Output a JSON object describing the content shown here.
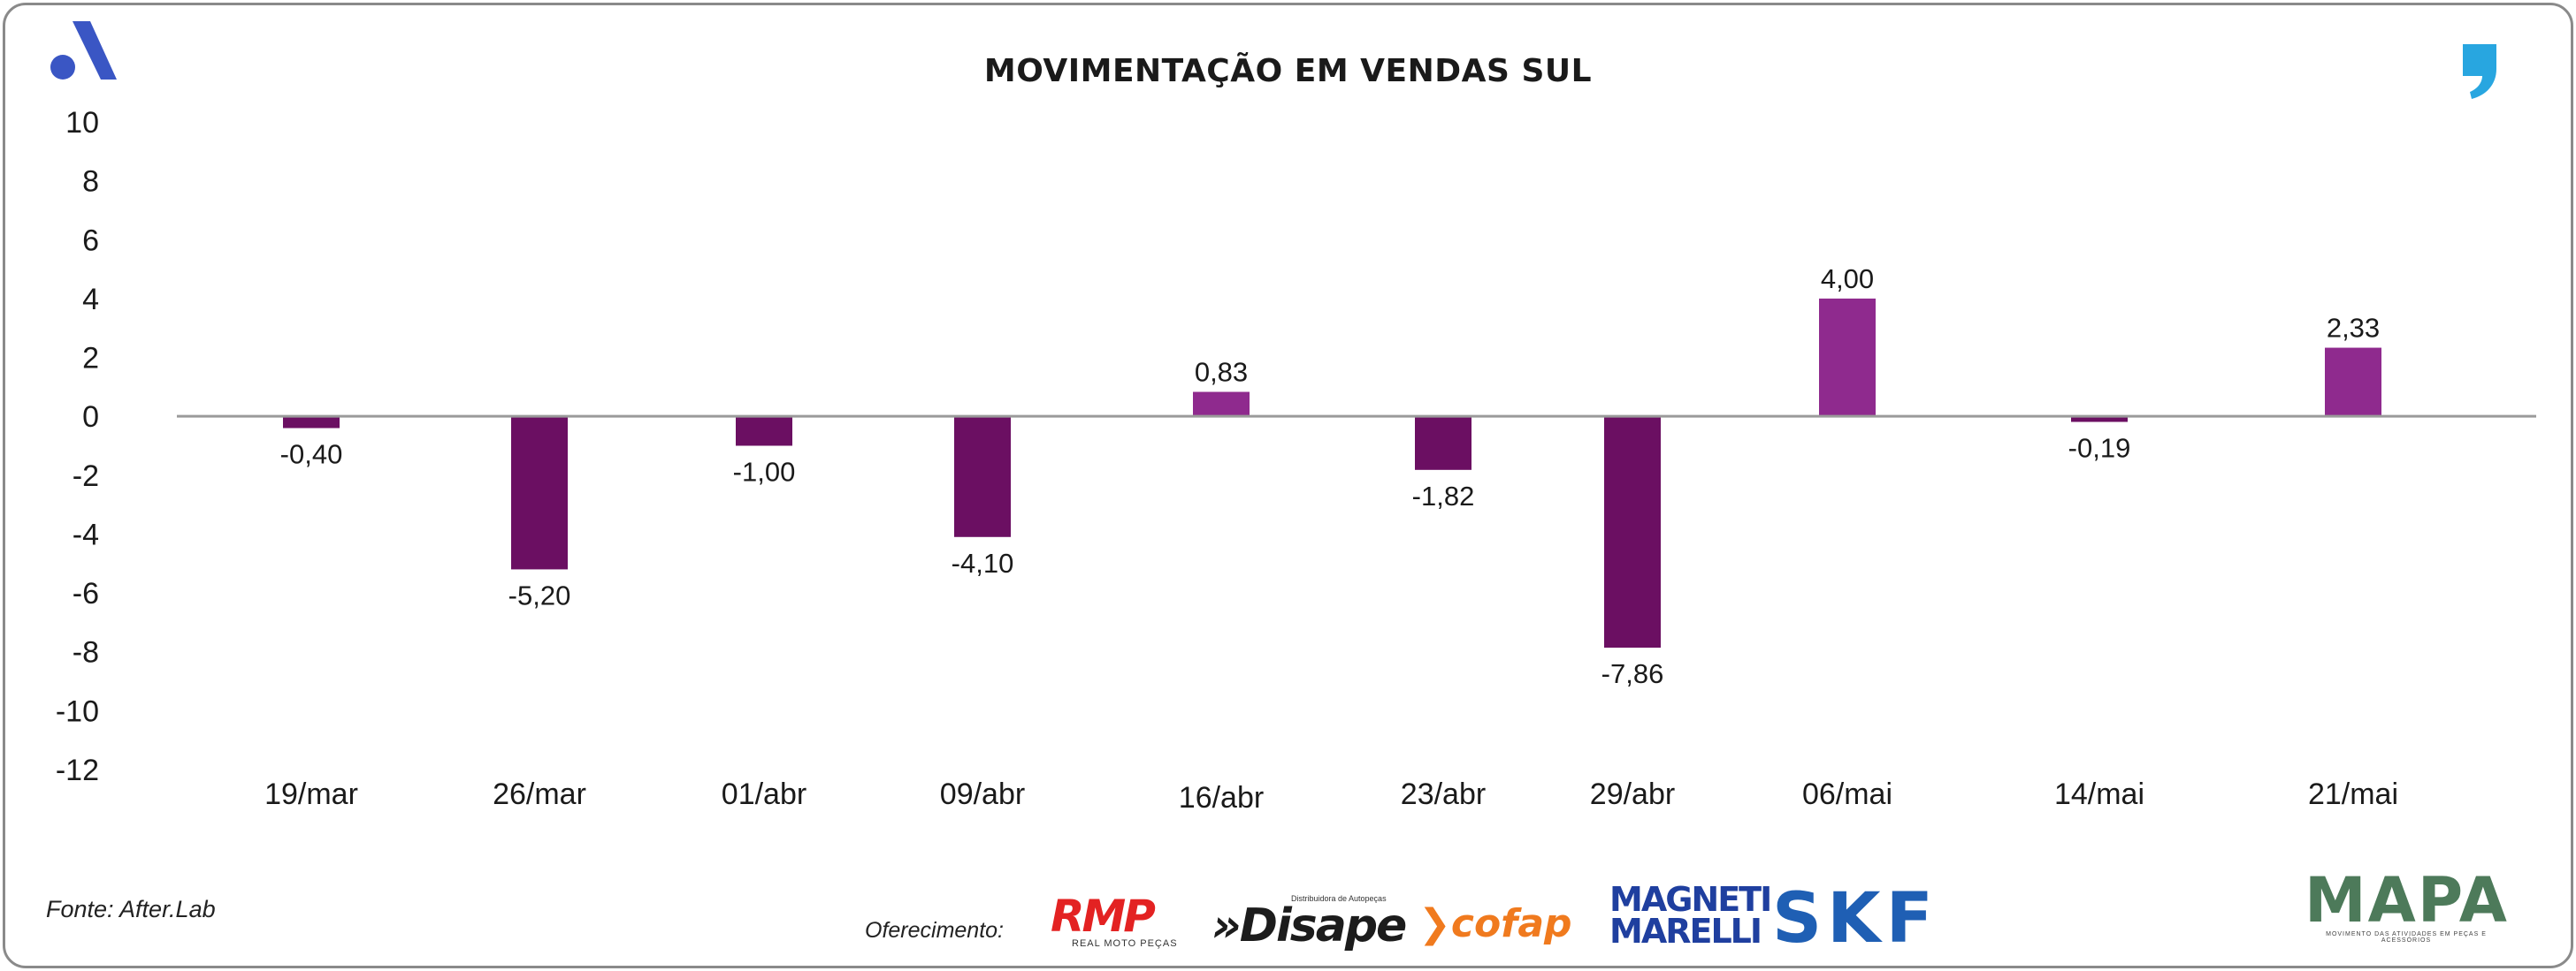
{
  "header": {
    "title": "MOVIMENTAÇÃO EM VENDAS SUL",
    "left_logo_icon": "brand-a-icon",
    "right_logo_icon": "quote-mark-icon"
  },
  "footer": {
    "source": "Fonte: After.Lab",
    "sponsors_label": "Oferecimento:",
    "sponsors": {
      "rmp": "RMP",
      "rmp_sub": "REAL MOTO PEÇAS",
      "disape": "»Disape",
      "disape_sub": "Distribuidora de Autopeças",
      "cofap": "cofap",
      "magneti": "MAGNETI MARELLI",
      "skf": "SKF",
      "mapa": "MAPA",
      "mapa_sub": "MOVIMENTO DAS ATIVIDADES EM PEÇAS E ACESSÓRIOS"
    }
  },
  "colors": {
    "negative_bar": "#6b0f62",
    "positive_bar": "#8f2a8e",
    "zero_line": "#9a9a9a"
  },
  "chart_data": {
    "type": "bar",
    "title": "MOVIMENTAÇÃO EM VENDAS SUL",
    "xlabel": "",
    "ylabel": "",
    "ylim": [
      -12,
      10
    ],
    "yticks": [
      "10",
      "8",
      "6",
      "4",
      "2",
      "0",
      "-2",
      "-4",
      "-6",
      "-8",
      "-10",
      "-12"
    ],
    "categories": [
      "19/mar",
      "26/mar",
      "01/abr",
      "09/abr",
      "16/abr",
      "23/abr",
      "29/abr",
      "06/mai",
      "14/mai",
      "21/mai"
    ],
    "values": [
      -0.4,
      -5.2,
      -1.0,
      -4.1,
      0.83,
      -1.82,
      -7.86,
      4.0,
      -0.19,
      2.33
    ],
    "value_labels": [
      "-0,40",
      "-5,20",
      "-1,00",
      "-4,10",
      "0,83",
      "-1,82",
      "-7,86",
      "4,00",
      "-0,19",
      "2,33"
    ],
    "grid": false,
    "legend": "none"
  }
}
